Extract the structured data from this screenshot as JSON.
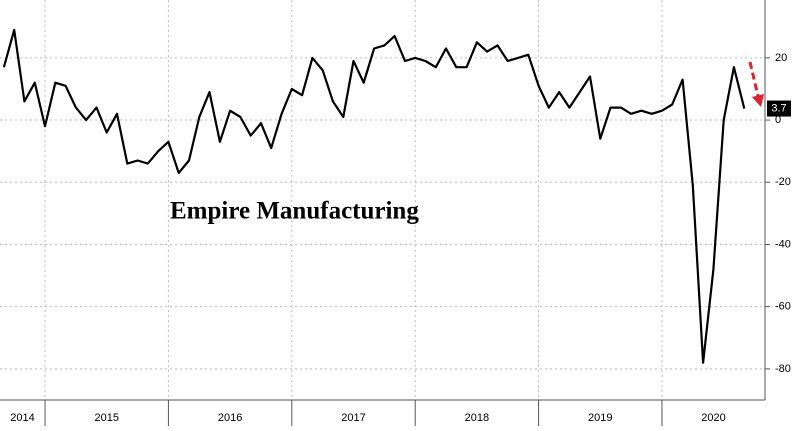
{
  "chart_data": {
    "type": "line",
    "title": "Empire Manufacturing",
    "x": [
      2014.667,
      2014.75,
      2014.833,
      2014.917,
      2015.0,
      2015.083,
      2015.167,
      2015.25,
      2015.333,
      2015.417,
      2015.5,
      2015.583,
      2015.667,
      2015.75,
      2015.833,
      2015.917,
      2016.0,
      2016.083,
      2016.167,
      2016.25,
      2016.333,
      2016.417,
      2016.5,
      2016.583,
      2016.667,
      2016.75,
      2016.833,
      2016.917,
      2017.0,
      2017.083,
      2017.167,
      2017.25,
      2017.333,
      2017.417,
      2017.5,
      2017.583,
      2017.667,
      2017.75,
      2017.833,
      2017.917,
      2018.0,
      2018.083,
      2018.167,
      2018.25,
      2018.333,
      2018.417,
      2018.5,
      2018.583,
      2018.667,
      2018.75,
      2018.833,
      2018.917,
      2019.0,
      2019.083,
      2019.167,
      2019.25,
      2019.333,
      2019.417,
      2019.5,
      2019.583,
      2019.667,
      2019.75,
      2019.833,
      2019.917,
      2020.0,
      2020.083,
      2020.167,
      2020.25,
      2020.333,
      2020.417,
      2020.5,
      2020.583,
      2020.667
    ],
    "values": [
      17,
      29,
      6,
      12,
      -2,
      12,
      11,
      4,
      0,
      4,
      -4,
      2,
      -14,
      -13,
      -14,
      -10,
      -7,
      -17,
      -13,
      1,
      9,
      -7,
      3,
      1,
      -5,
      -1,
      -9,
      2,
      10,
      8,
      20,
      16,
      6,
      1,
      19,
      12,
      23,
      24,
      27,
      19,
      20,
      19,
      17,
      23,
      17,
      17,
      25,
      22,
      24,
      19,
      20,
      21,
      11,
      4,
      9,
      4,
      9,
      14,
      -6,
      4,
      4,
      2,
      3,
      2,
      3,
      5,
      13,
      -21,
      -78,
      -48,
      0,
      17,
      3.7
    ],
    "color": "#000000",
    "xlim": [
      2014.635,
      2020.835
    ],
    "xticks": [
      2014,
      2015,
      2016,
      2017,
      2018,
      2019,
      2020
    ],
    "ylim": [
      -90,
      38.6
    ],
    "yticks": [
      20,
      0,
      -20,
      -40,
      -60,
      -80
    ],
    "grid": true
  }
}
